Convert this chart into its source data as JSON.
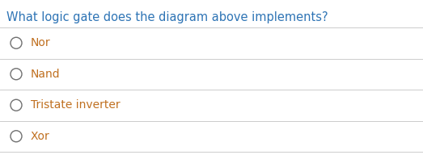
{
  "title": "What logic gate does the diagram above implements?",
  "title_color": "#2e74b5",
  "title_fontsize": 10.5,
  "options": [
    "Nor",
    "Nand",
    "Tristate inverter",
    "Xor"
  ],
  "option_color": "#c07020",
  "option_fontsize": 10,
  "background_color": "#ffffff",
  "line_color": "#cccccc",
  "circle_color": "#707070",
  "fig_width": 5.23,
  "fig_height": 1.92,
  "dpi": 100
}
